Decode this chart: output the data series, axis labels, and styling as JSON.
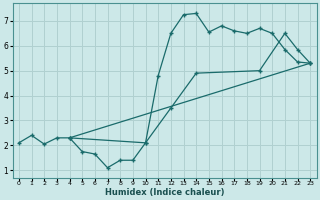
{
  "title": "",
  "xlabel": "Humidex (Indice chaleur)",
  "ylabel": "",
  "bg_color": "#cce8e8",
  "grid_color": "#b0d0d0",
  "line_color": "#1a6b6b",
  "xlim": [
    -0.5,
    23.5
  ],
  "ylim": [
    0.7,
    7.7
  ],
  "xticks": [
    0,
    1,
    2,
    3,
    4,
    5,
    6,
    7,
    8,
    9,
    10,
    11,
    12,
    13,
    14,
    15,
    16,
    17,
    18,
    19,
    20,
    21,
    22,
    23
  ],
  "yticks": [
    1,
    2,
    3,
    4,
    5,
    6,
    7
  ],
  "line1_x": [
    0,
    1,
    2,
    3,
    4,
    5,
    6,
    7,
    8,
    9,
    10,
    11,
    12,
    13,
    14,
    15,
    16,
    17,
    18,
    19,
    20,
    21,
    22,
    23
  ],
  "line1_y": [
    2.1,
    2.4,
    2.05,
    2.3,
    2.3,
    1.75,
    1.65,
    1.1,
    1.4,
    1.4,
    2.1,
    4.8,
    6.5,
    7.25,
    7.3,
    6.55,
    6.8,
    6.6,
    6.5,
    6.7,
    6.5,
    5.85,
    5.35,
    5.3
  ],
  "line2_x": [
    4,
    10,
    12,
    14,
    19,
    21,
    22,
    23
  ],
  "line2_y": [
    2.3,
    2.1,
    3.5,
    4.9,
    5.0,
    6.5,
    5.85,
    5.3
  ],
  "line3_x": [
    4,
    23
  ],
  "line3_y": [
    2.3,
    5.3
  ]
}
